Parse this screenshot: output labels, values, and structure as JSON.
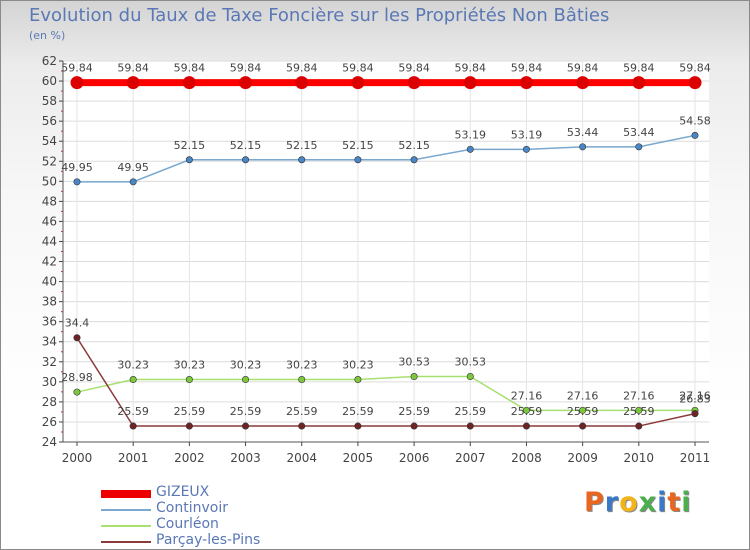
{
  "header": {
    "title": "Evolution du Taux de Taxe Foncière sur les Propriétés Non Bâties",
    "subtitle": "(en %)"
  },
  "brand": {
    "letters": [
      "P",
      "r",
      "o",
      "x",
      "i",
      "t",
      "i"
    ],
    "colors": [
      "#e8661f",
      "#3a78c8",
      "#f3b31a",
      "#4cae4c",
      "#3a78c8",
      "#e8661f",
      "#4cae4c"
    ]
  },
  "chart_data": {
    "type": "line",
    "title": "Evolution du Taux de Taxe Foncière sur les Propriétés Non Bâties",
    "ylabel": "(en %)",
    "xlabel": "",
    "ylim": [
      24,
      62
    ],
    "ytick_step": 2,
    "grid": true,
    "legend": "bottom-left",
    "categories": [
      "2000",
      "2001",
      "2002",
      "2003",
      "2004",
      "2005",
      "2006",
      "2007",
      "2008",
      "2009",
      "2010",
      "2011"
    ],
    "series": [
      {
        "name": "GIZEUX",
        "color": "#ff0000",
        "point_color": "#dd0000",
        "values": [
          59.84,
          59.84,
          59.84,
          59.84,
          59.84,
          59.84,
          59.84,
          59.84,
          59.84,
          59.84,
          59.84,
          59.84
        ],
        "labels": [
          "59.84",
          "59.84",
          "59.84",
          "59.84",
          "59.84",
          "59.84",
          "59.84",
          "59.84",
          "59.84",
          "59.84",
          "59.84",
          "59.84"
        ]
      },
      {
        "name": "Continvoir",
        "color": "#7aa8d0",
        "point_color": "#4a86c4",
        "values": [
          49.95,
          49.95,
          52.15,
          52.15,
          52.15,
          52.15,
          52.15,
          53.19,
          53.19,
          53.44,
          53.44,
          54.58
        ],
        "labels": [
          "49.95",
          "49.95",
          "52.15",
          "52.15",
          "52.15",
          "52.15",
          "52.15",
          "53.19",
          "53.19",
          "53.44",
          "53.44",
          "54.58"
        ]
      },
      {
        "name": "Courléon",
        "color": "#a8e070",
        "point_color": "#7cc83c",
        "values": [
          28.98,
          30.23,
          30.23,
          30.23,
          30.23,
          30.23,
          30.53,
          30.53,
          27.16,
          27.16,
          27.16,
          27.16
        ],
        "labels": [
          "28.98",
          "30.23",
          "30.23",
          "30.23",
          "30.23",
          "30.23",
          "30.53",
          "30.53",
          "27.16",
          "27.16",
          "27.16",
          "27.16"
        ]
      },
      {
        "name": "Parçay-les-Pins",
        "color": "#8b3a3a",
        "point_color": "#6e2424",
        "values": [
          34.4,
          25.59,
          25.59,
          25.59,
          25.59,
          25.59,
          25.59,
          25.59,
          25.59,
          25.59,
          25.59,
          26.83
        ],
        "labels": [
          "34.4",
          "25.59",
          "25.59",
          "25.59",
          "25.59",
          "25.59",
          "25.59",
          "25.59",
          "25.59",
          "25.59",
          "25.59",
          "26.83"
        ]
      }
    ]
  }
}
